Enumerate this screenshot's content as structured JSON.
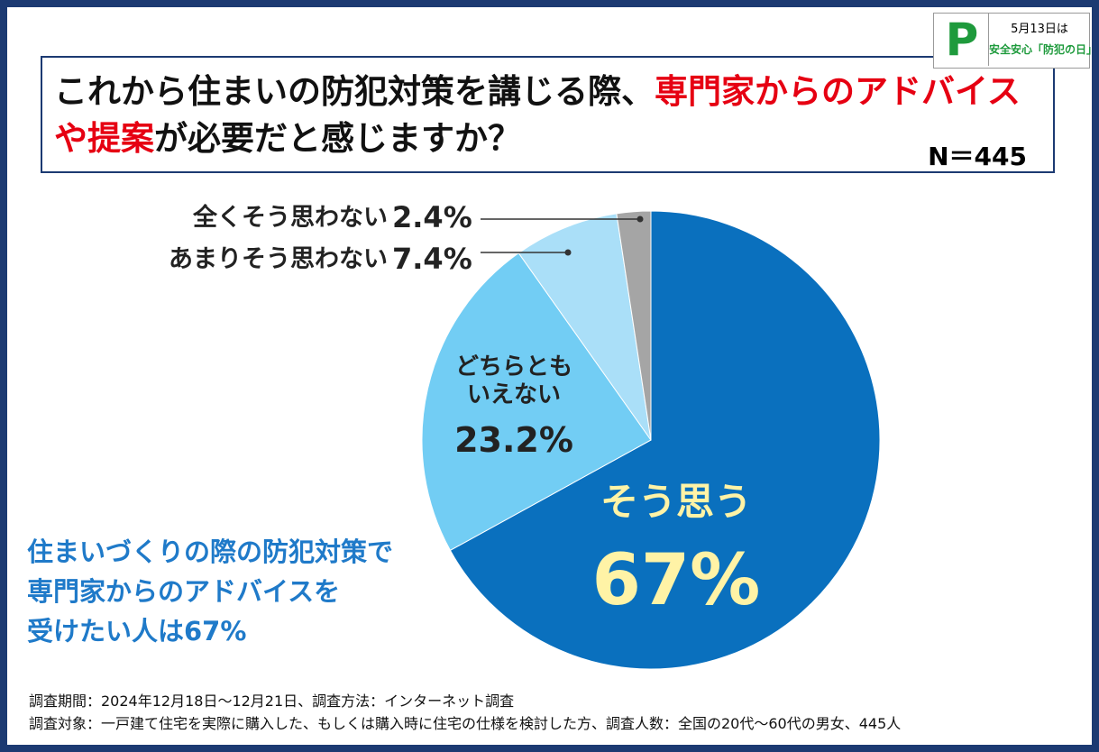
{
  "chart_data": {
    "type": "pie",
    "title_parts": [
      "これから住まいの防犯対策を講じる際、",
      "専門家からのアドバイス",
      "や提案",
      "が必要だと感じますか？"
    ],
    "title_colors": [
      "#111111",
      "#e60012",
      "#e60012",
      "#111111"
    ],
    "sample_size": "N＝445",
    "categories": [
      "そう思う",
      "どちらとも\nいえない",
      "あまりそう思わない",
      "全くそう思わない"
    ],
    "values": [
      67,
      23.2,
      7.4,
      2.4
    ],
    "value_labels": [
      "67%",
      "23.2%",
      "7.4%",
      "2.4%"
    ],
    "colors": [
      "#0a70be",
      "#72cdf4",
      "#aadff8",
      "#a5a5a5"
    ],
    "annotation": [
      "住まいづくりの際の防犯対策で",
      "専門家からのアドバイスを",
      "受けたい人は67%"
    ],
    "footnotes": [
      "調査期間：2024年12月18日～12月21日、調査方法：インターネット調査",
      "調査対象：一戸建て住宅を実際に購入した、もしくは購入時に住宅の仕様を検討した方、調査人数：全国の20代～60代の男女、445人"
    ],
    "logo": {
      "letter": "P",
      "lines": [
        "5月13日は",
        "安全安心「防犯の日」"
      ]
    }
  }
}
